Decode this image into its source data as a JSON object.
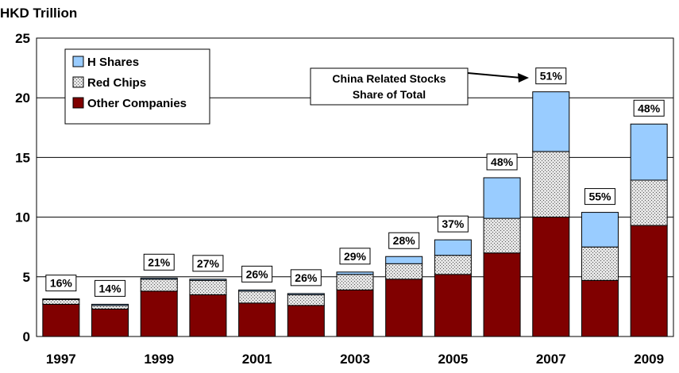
{
  "chart_data": {
    "type": "bar",
    "stacked": true,
    "ylabel": "HKD Trillion",
    "ylim": [
      0,
      25
    ],
    "yticks": [
      0,
      5,
      10,
      15,
      20,
      25
    ],
    "grid": true,
    "legend_position": "top-left",
    "categories": [
      "1997",
      "1998",
      "1999",
      "2000",
      "2001",
      "2002",
      "2003",
      "2004",
      "2005",
      "2006",
      "2007",
      "2008",
      "2009"
    ],
    "x_tick_labels": [
      "1997",
      "",
      "1999",
      "",
      "2001",
      "",
      "2003",
      "",
      "2005",
      "",
      "2007",
      "",
      "2009"
    ],
    "series": [
      {
        "name": "Other Companies",
        "color": "#800000",
        "values": [
          2.7,
          2.3,
          3.8,
          3.5,
          2.8,
          2.6,
          3.9,
          4.8,
          5.2,
          7.0,
          10.0,
          4.7,
          9.3
        ]
      },
      {
        "name": "Red Chips",
        "color": "#c0c0c0",
        "values": [
          0.4,
          0.3,
          1.0,
          1.2,
          1.0,
          0.9,
          1.3,
          1.3,
          1.6,
          2.9,
          5.5,
          2.8,
          3.8
        ]
      },
      {
        "name": "H Shares",
        "color": "#99ccff",
        "values": [
          0.05,
          0.1,
          0.1,
          0.1,
          0.1,
          0.1,
          0.2,
          0.6,
          1.3,
          3.4,
          5.0,
          2.9,
          4.7
        ]
      }
    ],
    "legend_order": [
      "H Shares",
      "Red Chips",
      "Other Companies"
    ],
    "share_labels": [
      "16%",
      "14%",
      "21%",
      "27%",
      "26%",
      "26%",
      "29%",
      "28%",
      "37%",
      "48%",
      "51%",
      "55%",
      "48%"
    ],
    "annotation": {
      "line1": "China Related Stocks",
      "line2": "Share of Total"
    }
  }
}
